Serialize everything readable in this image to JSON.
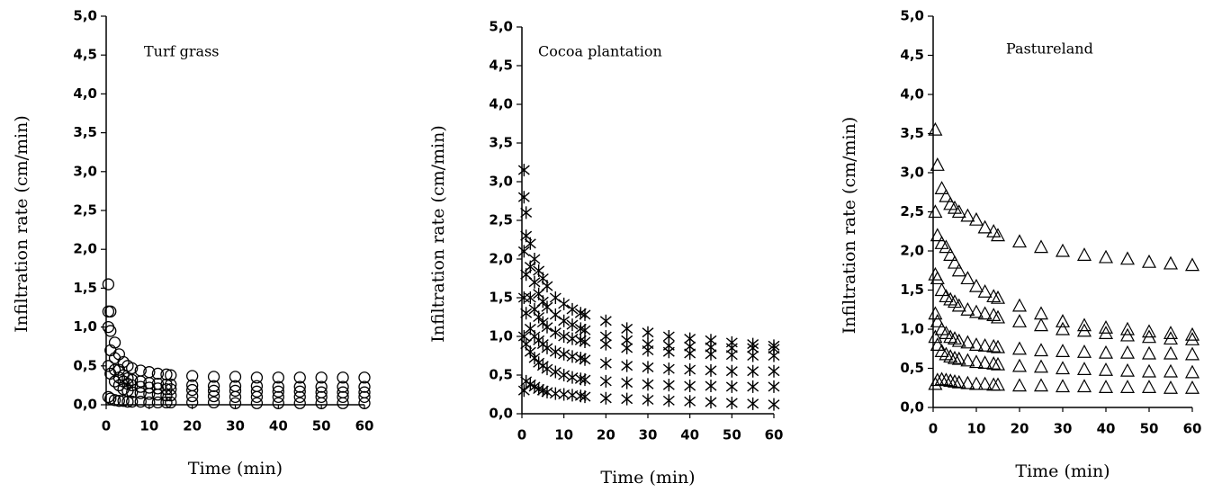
{
  "chart_data": [
    {
      "type": "scatter",
      "marker": "circle",
      "annotation": "Turf grass",
      "xlabel": "Time (min)",
      "ylabel": "Infiltration rate (cm/min)",
      "xlim": [
        0,
        60
      ],
      "ylim": [
        0,
        5
      ],
      "xticks": [
        0,
        10,
        20,
        30,
        40,
        50,
        60
      ],
      "yticks": [
        {
          "value": 0,
          "label": "0,0"
        },
        {
          "value": 0.5,
          "label": "0,5"
        },
        {
          "value": 1,
          "label": "1,0"
        },
        {
          "value": 1.5,
          "label": "1,5"
        },
        {
          "value": 2,
          "label": "2,0"
        },
        {
          "value": 2.5,
          "label": "2,5"
        },
        {
          "value": 3,
          "label": "3,0"
        },
        {
          "value": 3.5,
          "label": "3,5"
        },
        {
          "value": 4,
          "label": "4,0"
        },
        {
          "value": 4.5,
          "label": "4,5"
        },
        {
          "value": 5,
          "label": "5,0"
        }
      ],
      "x": [
        0.5,
        1,
        2,
        3,
        4,
        5,
        6,
        8,
        10,
        12,
        14,
        15,
        20,
        25,
        30,
        35,
        40,
        45,
        50,
        55,
        60
      ],
      "series": [
        {
          "color": "#000000",
          "values": [
            1.55,
            1.2,
            0.8,
            0.65,
            0.55,
            0.5,
            0.47,
            0.44,
            0.42,
            0.4,
            0.39,
            0.38,
            0.37,
            0.36,
            0.36,
            0.35,
            0.35,
            0.35,
            0.35,
            0.35,
            0.35
          ]
        },
        {
          "color": "#000000",
          "values": [
            1.2,
            0.95,
            0.6,
            0.45,
            0.38,
            0.34,
            0.32,
            0.3,
            0.28,
            0.27,
            0.26,
            0.26,
            0.25,
            0.24,
            0.24,
            0.24,
            0.23,
            0.23,
            0.23,
            0.23,
            0.23
          ]
        },
        {
          "color": "#000000",
          "values": [
            1.0,
            0.7,
            0.45,
            0.35,
            0.3,
            0.27,
            0.25,
            0.23,
            0.22,
            0.21,
            0.2,
            0.2,
            0.19,
            0.18,
            0.18,
            0.17,
            0.17,
            0.17,
            0.16,
            0.16,
            0.16
          ]
        },
        {
          "color": "#000000",
          "values": [
            0.5,
            0.4,
            0.3,
            0.25,
            0.2,
            0.18,
            0.16,
            0.15,
            0.14,
            0.13,
            0.12,
            0.12,
            0.11,
            0.11,
            0.1,
            0.1,
            0.1,
            0.1,
            0.1,
            0.1,
            0.1
          ]
        },
        {
          "color": "#000000",
          "values": [
            0.1,
            0.08,
            0.06,
            0.05,
            0.05,
            0.04,
            0.04,
            0.04,
            0.03,
            0.03,
            0.03,
            0.03,
            0.03,
            0.03,
            0.02,
            0.02,
            0.02,
            0.02,
            0.02,
            0.02,
            0.02
          ]
        }
      ]
    },
    {
      "type": "scatter",
      "marker": "asterisk",
      "annotation": "Cocoa plantation",
      "xlabel": "Time (min)",
      "ylabel": "Infiltration rate (cm/min)",
      "xlim": [
        0,
        60
      ],
      "ylim": [
        0,
        5
      ],
      "xticks": [
        0,
        10,
        20,
        30,
        40,
        50,
        60
      ],
      "yticks": [
        {
          "value": 0,
          "label": "0,0"
        },
        {
          "value": 0.5,
          "label": "0,5"
        },
        {
          "value": 1,
          "label": "1,0"
        },
        {
          "value": 1.5,
          "label": "1,5"
        },
        {
          "value": 2,
          "label": "2,0"
        },
        {
          "value": 2.5,
          "label": "2,5"
        },
        {
          "value": 3,
          "label": "3,0"
        },
        {
          "value": 3.5,
          "label": "3,5"
        },
        {
          "value": 4,
          "label": "4,0"
        },
        {
          "value": 4.5,
          "label": "4,5"
        },
        {
          "value": 5,
          "label": "5,0"
        }
      ],
      "x": [
        0.5,
        1,
        2,
        3,
        4,
        5,
        6,
        8,
        10,
        12,
        14,
        15,
        20,
        25,
        30,
        35,
        40,
        45,
        50,
        55,
        60
      ],
      "series": [
        {
          "color": "#000000",
          "values": [
            3.15,
            2.6,
            2.2,
            2.0,
            1.85,
            1.75,
            1.65,
            1.5,
            1.42,
            1.35,
            1.3,
            1.28,
            1.2,
            1.1,
            1.05,
            1.0,
            0.97,
            0.95,
            0.92,
            0.9,
            0.88
          ]
        },
        {
          "color": "#000000",
          "values": [
            2.8,
            2.3,
            1.9,
            1.7,
            1.55,
            1.45,
            1.38,
            1.28,
            1.2,
            1.15,
            1.1,
            1.08,
            1.0,
            0.95,
            0.9,
            0.88,
            0.87,
            0.86,
            0.85,
            0.85,
            0.84
          ]
        },
        {
          "color": "#000000",
          "values": [
            2.1,
            1.8,
            1.5,
            1.35,
            1.25,
            1.18,
            1.12,
            1.05,
            1.0,
            0.97,
            0.95,
            0.93,
            0.9,
            0.85,
            0.82,
            0.8,
            0.78,
            0.77,
            0.76,
            0.75,
            0.75
          ]
        },
        {
          "color": "#000000",
          "values": [
            1.5,
            1.3,
            1.1,
            1.0,
            0.95,
            0.9,
            0.85,
            0.8,
            0.77,
            0.74,
            0.72,
            0.7,
            0.65,
            0.62,
            0.6,
            0.58,
            0.57,
            0.56,
            0.55,
            0.55,
            0.55
          ]
        },
        {
          "color": "#000000",
          "values": [
            1.0,
            0.9,
            0.8,
            0.72,
            0.66,
            0.62,
            0.58,
            0.54,
            0.5,
            0.47,
            0.45,
            0.44,
            0.42,
            0.4,
            0.38,
            0.37,
            0.36,
            0.36,
            0.35,
            0.35,
            0.35
          ]
        },
        {
          "color": "#000000",
          "values": [
            0.3,
            0.42,
            0.38,
            0.35,
            0.32,
            0.3,
            0.28,
            0.26,
            0.25,
            0.24,
            0.23,
            0.22,
            0.2,
            0.19,
            0.18,
            0.17,
            0.16,
            0.15,
            0.14,
            0.13,
            0.12
          ]
        }
      ]
    },
    {
      "type": "scatter",
      "marker": "triangle",
      "annotation": "Pastureland",
      "xlabel": "Time (min)",
      "ylabel": "Infiltration rate (cm/min)",
      "xlim": [
        0,
        60
      ],
      "ylim": [
        0,
        5
      ],
      "xticks": [
        0,
        10,
        20,
        30,
        40,
        50,
        60
      ],
      "yticks": [
        {
          "value": 0,
          "label": "0,0"
        },
        {
          "value": 0.5,
          "label": "0,5"
        },
        {
          "value": 1,
          "label": "1,0"
        },
        {
          "value": 1.5,
          "label": "1,5"
        },
        {
          "value": 2,
          "label": "2,0"
        },
        {
          "value": 2.5,
          "label": "2,5"
        },
        {
          "value": 3,
          "label": "3,0"
        },
        {
          "value": 3.5,
          "label": "3,5"
        },
        {
          "value": 4,
          "label": "4,0"
        },
        {
          "value": 4.5,
          "label": "4,5"
        },
        {
          "value": 5,
          "label": "5,0"
        }
      ],
      "x": [
        0.5,
        1,
        2,
        3,
        4,
        5,
        6,
        8,
        10,
        12,
        14,
        15,
        20,
        25,
        30,
        35,
        40,
        45,
        50,
        55,
        60
      ],
      "series": [
        {
          "color": "#000000",
          "values": [
            3.55,
            3.1,
            2.8,
            2.7,
            2.6,
            2.55,
            2.5,
            2.45,
            2.4,
            2.3,
            2.25,
            2.2,
            2.12,
            2.05,
            2.0,
            1.95,
            1.92,
            1.9,
            1.86,
            1.84,
            1.82
          ]
        },
        {
          "color": "#000000",
          "values": [
            2.5,
            2.2,
            2.1,
            2.05,
            1.95,
            1.85,
            1.75,
            1.65,
            1.55,
            1.48,
            1.42,
            1.4,
            1.3,
            1.2,
            1.1,
            1.05,
            1.02,
            1.0,
            0.97,
            0.95,
            0.93
          ]
        },
        {
          "color": "#000000",
          "values": [
            1.7,
            1.65,
            1.5,
            1.42,
            1.38,
            1.35,
            1.3,
            1.25,
            1.22,
            1.2,
            1.18,
            1.15,
            1.1,
            1.05,
            1.0,
            0.98,
            0.95,
            0.92,
            0.9,
            0.88,
            0.87
          ]
        },
        {
          "color": "#000000",
          "values": [
            1.2,
            1.1,
            1.0,
            0.95,
            0.9,
            0.88,
            0.85,
            0.83,
            0.8,
            0.79,
            0.78,
            0.77,
            0.75,
            0.73,
            0.72,
            0.71,
            0.7,
            0.7,
            0.69,
            0.69,
            0.68
          ]
        },
        {
          "color": "#000000",
          "values": [
            0.9,
            0.8,
            0.72,
            0.68,
            0.65,
            0.63,
            0.62,
            0.6,
            0.58,
            0.57,
            0.56,
            0.55,
            0.53,
            0.52,
            0.5,
            0.49,
            0.48,
            0.47,
            0.46,
            0.46,
            0.45
          ]
        },
        {
          "color": "#000000",
          "values": [
            0.3,
            0.35,
            0.36,
            0.35,
            0.34,
            0.33,
            0.32,
            0.31,
            0.3,
            0.3,
            0.29,
            0.29,
            0.28,
            0.28,
            0.27,
            0.27,
            0.26,
            0.26,
            0.26,
            0.25,
            0.25
          ]
        }
      ]
    }
  ]
}
